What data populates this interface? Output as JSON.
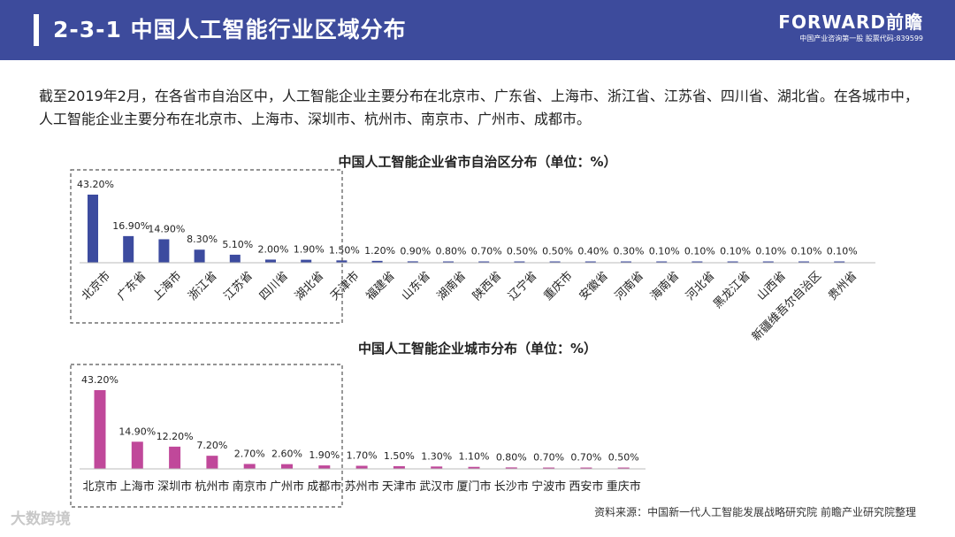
{
  "header": {
    "title": "2-3-1  中国人工智能行业区域分布",
    "logo_brand": "FORWARD前瞻",
    "logo_tagline": "中国产业咨询第一股  股票代码:839599"
  },
  "summary": "截至2019年2月，在各省市自治区中，人工智能企业主要分布在北京市、广东省、上海市、浙江省、江苏省、四川省、湖北省。在各城市中，人工智能企业主要分布在北京市、上海市、深圳市、杭州市、南京市、广州市、成都市。",
  "source": "资料来源：中国新一代人工智能发展战略研究院 前瞻产业研究院整理",
  "footer_logo": "大数跨境",
  "colors": {
    "header": "#3d4b9c",
    "province_bar": "#3c4b9f",
    "city_bar": "#c0489a",
    "highlight_box": "#555555"
  },
  "chart_data": [
    {
      "type": "bar",
      "title": "中国人工智能企业省市自治区分布（单位：%）",
      "categories": [
        "北京市",
        "广东省",
        "上海市",
        "浙江省",
        "江苏省",
        "四川省",
        "湖北省",
        "天津市",
        "福建省",
        "山东省",
        "湖南省",
        "陕西省",
        "辽宁省",
        "重庆市",
        "安徽省",
        "河南省",
        "海南省",
        "河北省",
        "黑龙江省",
        "山西省",
        "新疆维吾尔自治区",
        "贵州省"
      ],
      "values": [
        43.2,
        16.9,
        14.9,
        8.3,
        5.1,
        2.0,
        1.9,
        1.5,
        1.2,
        0.9,
        0.8,
        0.7,
        0.5,
        0.5,
        0.4,
        0.3,
        0.1,
        0.1,
        0.1,
        0.1,
        0.1,
        0.1
      ],
      "value_labels": [
        "43.20%",
        "16.90%",
        "14.90%",
        "8.30%",
        "5.10%",
        "2.00%",
        "1.90%",
        "1.50%",
        "1.20%",
        "0.90%",
        "0.80%",
        "0.70%",
        "0.50%",
        "0.50%",
        "0.40%",
        "0.30%",
        "0.10%",
        "0.10%",
        "0.10%",
        "0.10%",
        "0.10%",
        "0.10%"
      ],
      "highlighted_count": 7,
      "grid": false,
      "legend": "none"
    },
    {
      "type": "bar",
      "title": "中国人工智能企业城市分布（单位：%）",
      "categories": [
        "北京市",
        "上海市",
        "深圳市",
        "杭州市",
        "南京市",
        "广州市",
        "成都市",
        "苏州市",
        "天津市",
        "武汉市",
        "厦门市",
        "长沙市",
        "宁波市",
        "西安市",
        "重庆市"
      ],
      "values": [
        43.2,
        14.9,
        12.2,
        7.2,
        2.7,
        2.6,
        1.9,
        1.7,
        1.5,
        1.3,
        1.1,
        0.8,
        0.7,
        0.7,
        0.5
      ],
      "value_labels": [
        "43.20%",
        "14.90%",
        "12.20%",
        "7.20%",
        "2.70%",
        "2.60%",
        "1.90%",
        "1.70%",
        "1.50%",
        "1.30%",
        "1.10%",
        "0.80%",
        "0.70%",
        "0.70%",
        "0.50%"
      ],
      "highlighted_count": 7,
      "grid": false,
      "legend": "none"
    }
  ]
}
